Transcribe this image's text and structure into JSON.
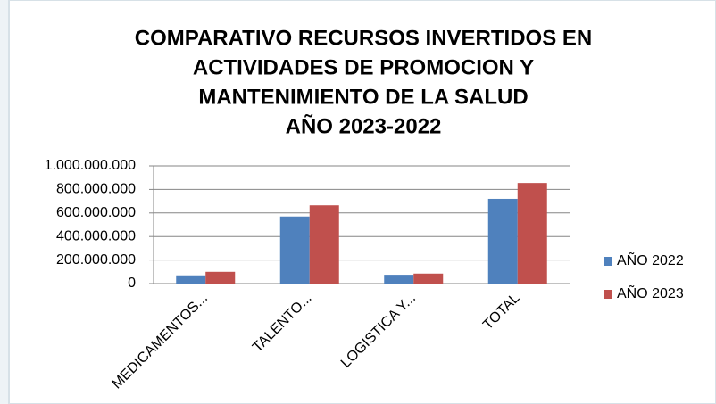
{
  "chart_data": {
    "type": "bar",
    "title": [
      "COMPARATIVO RECURSOS INVERTIDOS EN",
      "ACTIVIDADES DE PROMOCION Y",
      "MANTENIMIENTO DE LA SALUD",
      "AÑO 2023-2022"
    ],
    "categories": [
      "MEDICAMENTOS...",
      "TALENTO...",
      "LOGISTICA Y...",
      "TOTAL"
    ],
    "series": [
      {
        "name": "AÑO 2022",
        "color": "#4f81bd",
        "values": [
          70000000,
          570000000,
          75000000,
          720000000
        ]
      },
      {
        "name": "AÑO 2023",
        "color": "#c0504d",
        "values": [
          100000000,
          665000000,
          85000000,
          855000000
        ]
      }
    ],
    "ylim": [
      0,
      1000000000
    ],
    "yticks": [
      0,
      {
        "value": 200000000,
        "label": "200.000.000"
      },
      {
        "value": 400000000,
        "label": "400.000.000"
      },
      {
        "value": 600000000,
        "label": "600.000.000"
      },
      {
        "value": 800000000,
        "label": "800.000.000"
      },
      {
        "value": 1000000000,
        "label": "1.000.000.000"
      }
    ],
    "grid": true,
    "legend": "right"
  }
}
